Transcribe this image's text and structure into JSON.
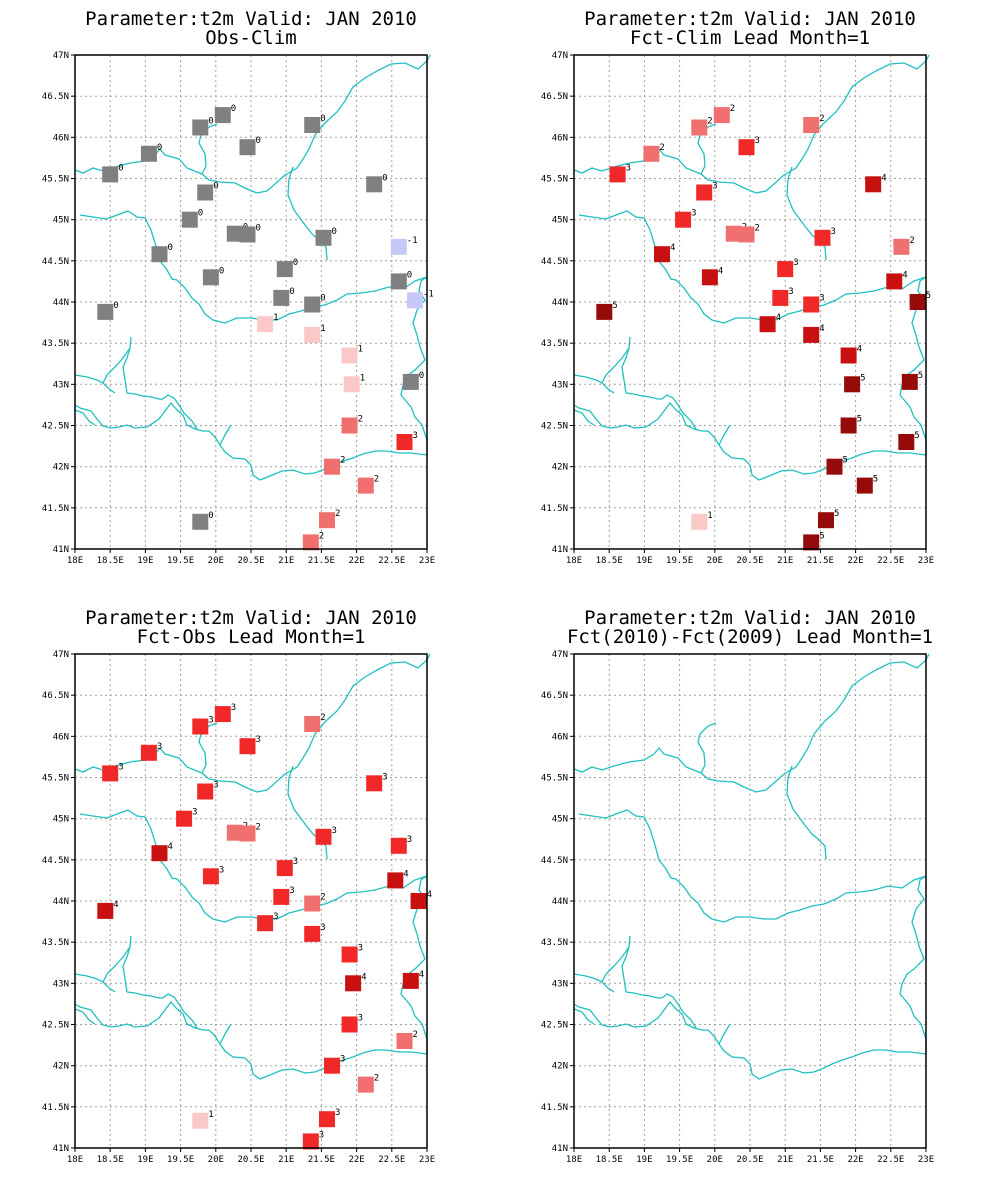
{
  "maps": [
    {
      "title_line1": "Parameter:t2m Valid: JAN 2010",
      "title_line2": "Obs-Clim",
      "stations": [
        {
          "lon": 20.1,
          "lat": 46.27,
          "v": "0"
        },
        {
          "lon": 19.78,
          "lat": 46.12,
          "v": "0"
        },
        {
          "lon": 21.37,
          "lat": 46.15,
          "v": "0"
        },
        {
          "lon": 19.05,
          "lat": 45.8,
          "v": "0"
        },
        {
          "lon": 20.45,
          "lat": 45.88,
          "v": "0"
        },
        {
          "lon": 18.5,
          "lat": 45.55,
          "v": "0"
        },
        {
          "lon": 19.85,
          "lat": 45.33,
          "v": "0"
        },
        {
          "lon": 22.25,
          "lat": 45.43,
          "v": "0"
        },
        {
          "lon": 19.63,
          "lat": 45.0,
          "v": "0"
        },
        {
          "lon": 20.27,
          "lat": 44.83,
          "v": "0"
        },
        {
          "lon": 20.45,
          "lat": 44.82,
          "v": "0"
        },
        {
          "lon": 21.53,
          "lat": 44.78,
          "v": "0"
        },
        {
          "lon": 22.6,
          "lat": 44.67,
          "v": "-1"
        },
        {
          "lon": 19.2,
          "lat": 44.58,
          "v": "0"
        },
        {
          "lon": 19.93,
          "lat": 44.3,
          "v": "0"
        },
        {
          "lon": 20.98,
          "lat": 44.4,
          "v": "0"
        },
        {
          "lon": 22.6,
          "lat": 44.25,
          "v": "0"
        },
        {
          "lon": 20.93,
          "lat": 44.05,
          "v": "0"
        },
        {
          "lon": 21.37,
          "lat": 43.97,
          "v": "0"
        },
        {
          "lon": 22.83,
          "lat": 44.02,
          "v": "-1"
        },
        {
          "lon": 18.43,
          "lat": 43.88,
          "v": "0"
        },
        {
          "lon": 20.7,
          "lat": 43.73,
          "v": "1"
        },
        {
          "lon": 21.37,
          "lat": 43.6,
          "v": "1"
        },
        {
          "lon": 21.9,
          "lat": 43.35,
          "v": "1"
        },
        {
          "lon": 21.93,
          "lat": 43.0,
          "v": "1"
        },
        {
          "lon": 22.77,
          "lat": 43.03,
          "v": "0"
        },
        {
          "lon": 21.9,
          "lat": 42.5,
          "v": "2"
        },
        {
          "lon": 22.68,
          "lat": 42.3,
          "v": "3"
        },
        {
          "lon": 21.65,
          "lat": 42.0,
          "v": "2"
        },
        {
          "lon": 22.13,
          "lat": 41.77,
          "v": "2"
        },
        {
          "lon": 19.78,
          "lat": 41.33,
          "v": "0"
        },
        {
          "lon": 21.58,
          "lat": 41.35,
          "v": "2"
        },
        {
          "lon": 21.35,
          "lat": 41.08,
          "v": "2"
        }
      ]
    },
    {
      "title_line1": "Parameter:t2m Valid: JAN 2010",
      "title_line2": "Fct-Clim Lead Month=1",
      "stations": [
        {
          "lon": 20.1,
          "lat": 46.27,
          "v": "2"
        },
        {
          "lon": 19.78,
          "lat": 46.12,
          "v": "2"
        },
        {
          "lon": 21.37,
          "lat": 46.15,
          "v": "2"
        },
        {
          "lon": 19.1,
          "lat": 45.8,
          "v": "2"
        },
        {
          "lon": 20.45,
          "lat": 45.88,
          "v": "3"
        },
        {
          "lon": 18.62,
          "lat": 45.55,
          "v": "3"
        },
        {
          "lon": 19.85,
          "lat": 45.33,
          "v": "3"
        },
        {
          "lon": 22.25,
          "lat": 45.43,
          "v": "4"
        },
        {
          "lon": 19.55,
          "lat": 45.0,
          "v": "3"
        },
        {
          "lon": 20.27,
          "lat": 44.83,
          "v": "2"
        },
        {
          "lon": 20.45,
          "lat": 44.82,
          "v": "2"
        },
        {
          "lon": 21.53,
          "lat": 44.78,
          "v": "3"
        },
        {
          "lon": 22.65,
          "lat": 44.67,
          "v": "2"
        },
        {
          "lon": 19.25,
          "lat": 44.58,
          "v": "4"
        },
        {
          "lon": 19.93,
          "lat": 44.3,
          "v": "4"
        },
        {
          "lon": 21.0,
          "lat": 44.4,
          "v": "3"
        },
        {
          "lon": 22.55,
          "lat": 44.25,
          "v": "4"
        },
        {
          "lon": 20.93,
          "lat": 44.05,
          "v": "3"
        },
        {
          "lon": 21.37,
          "lat": 43.97,
          "v": "3"
        },
        {
          "lon": 22.88,
          "lat": 44.0,
          "v": "5"
        },
        {
          "lon": 18.43,
          "lat": 43.88,
          "v": "5"
        },
        {
          "lon": 20.75,
          "lat": 43.73,
          "v": "4"
        },
        {
          "lon": 21.37,
          "lat": 43.6,
          "v": "4"
        },
        {
          "lon": 21.9,
          "lat": 43.35,
          "v": "4"
        },
        {
          "lon": 21.95,
          "lat": 43.0,
          "v": "5"
        },
        {
          "lon": 22.77,
          "lat": 43.03,
          "v": "5"
        },
        {
          "lon": 21.9,
          "lat": 42.5,
          "v": "5"
        },
        {
          "lon": 22.72,
          "lat": 42.3,
          "v": "5"
        },
        {
          "lon": 21.7,
          "lat": 42.0,
          "v": "5"
        },
        {
          "lon": 22.13,
          "lat": 41.77,
          "v": "5"
        },
        {
          "lon": 19.78,
          "lat": 41.33,
          "v": "1"
        },
        {
          "lon": 21.58,
          "lat": 41.35,
          "v": "5"
        },
        {
          "lon": 21.37,
          "lat": 41.08,
          "v": "5"
        }
      ]
    },
    {
      "title_line1": "Parameter:t2m Valid: JAN 2010",
      "title_line2": "Fct-Obs Lead Month=1",
      "stations": [
        {
          "lon": 20.1,
          "lat": 46.27,
          "v": "3"
        },
        {
          "lon": 19.78,
          "lat": 46.12,
          "v": "3"
        },
        {
          "lon": 21.37,
          "lat": 46.15,
          "v": "2"
        },
        {
          "lon": 19.05,
          "lat": 45.8,
          "v": "3"
        },
        {
          "lon": 20.45,
          "lat": 45.88,
          "v": "3"
        },
        {
          "lon": 18.5,
          "lat": 45.55,
          "v": "3"
        },
        {
          "lon": 19.85,
          "lat": 45.33,
          "v": "3"
        },
        {
          "lon": 22.25,
          "lat": 45.43,
          "v": "3"
        },
        {
          "lon": 19.55,
          "lat": 45.0,
          "v": "3"
        },
        {
          "lon": 20.27,
          "lat": 44.83,
          "v": "2"
        },
        {
          "lon": 20.45,
          "lat": 44.82,
          "v": "2"
        },
        {
          "lon": 21.53,
          "lat": 44.78,
          "v": "3"
        },
        {
          "lon": 22.6,
          "lat": 44.67,
          "v": "3"
        },
        {
          "lon": 19.2,
          "lat": 44.58,
          "v": "4"
        },
        {
          "lon": 19.93,
          "lat": 44.3,
          "v": "3"
        },
        {
          "lon": 20.98,
          "lat": 44.4,
          "v": "3"
        },
        {
          "lon": 22.55,
          "lat": 44.25,
          "v": "4"
        },
        {
          "lon": 20.93,
          "lat": 44.05,
          "v": "3"
        },
        {
          "lon": 21.37,
          "lat": 43.97,
          "v": "2"
        },
        {
          "lon": 22.88,
          "lat": 44.0,
          "v": "4"
        },
        {
          "lon": 18.43,
          "lat": 43.88,
          "v": "4"
        },
        {
          "lon": 20.7,
          "lat": 43.73,
          "v": "3"
        },
        {
          "lon": 21.37,
          "lat": 43.6,
          "v": "3"
        },
        {
          "lon": 21.9,
          "lat": 43.35,
          "v": "3"
        },
        {
          "lon": 21.95,
          "lat": 43.0,
          "v": "4"
        },
        {
          "lon": 22.77,
          "lat": 43.03,
          "v": "4"
        },
        {
          "lon": 21.9,
          "lat": 42.5,
          "v": "3"
        },
        {
          "lon": 22.68,
          "lat": 42.3,
          "v": "2"
        },
        {
          "lon": 21.65,
          "lat": 42.0,
          "v": "3"
        },
        {
          "lon": 22.13,
          "lat": 41.77,
          "v": "2"
        },
        {
          "lon": 19.78,
          "lat": 41.33,
          "v": "1"
        },
        {
          "lon": 21.58,
          "lat": 41.35,
          "v": "3"
        },
        {
          "lon": 21.35,
          "lat": 41.08,
          "v": "3"
        }
      ]
    },
    {
      "title_line1": "Parameter:t2m Valid: JAN 2010",
      "title_line2": "Fct(2010)-Fct(2009) Lead Month=1",
      "stations": []
    }
  ],
  "lon_ticks": [
    "18E",
    "18.5E",
    "19E",
    "19.5E",
    "20E",
    "20.5E",
    "21E",
    "21.5E",
    "22E",
    "22.5E",
    "23E"
  ],
  "lat_ticks": [
    "41N",
    "41.5N",
    "42N",
    "42.5N",
    "43N",
    "43.5N",
    "44N",
    "44.5N",
    "45N",
    "45.5N",
    "46N",
    "46.5N",
    "47N"
  ],
  "extent": {
    "lon": [
      18,
      23
    ],
    "lat": [
      41,
      47
    ]
  },
  "colors": {
    "-1": "#c8c8f8",
    "0": "#808080",
    "1": "#fbc8c8",
    "2": "#f07070",
    "3": "#f02828",
    "4": "#c81010",
    "5": "#960a0a",
    "coast": "#20c0c0",
    "grid": "#a0a0a0",
    "frame": "#000000"
  }
}
